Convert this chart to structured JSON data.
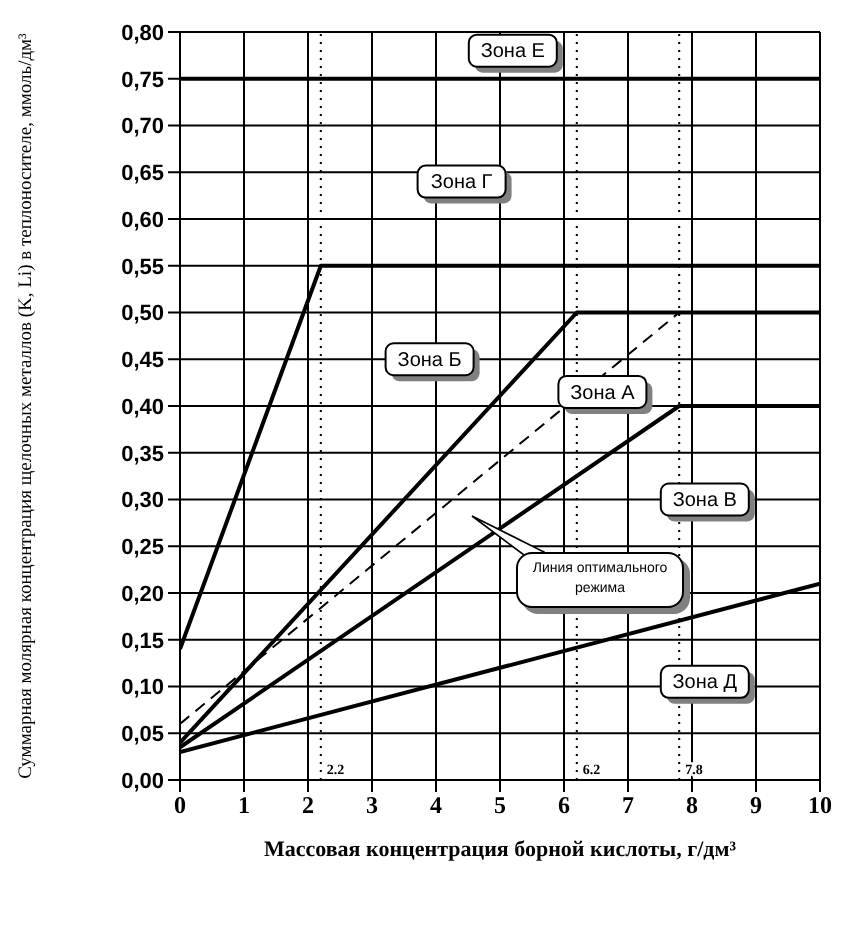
{
  "chart_data": {
    "type": "line",
    "xlabel": "Массовая концентрация борной кислоты, г/дм³",
    "ylabel": "Суммарная молярная концентрация щелочных металлов (K, Li) в теплоносителе, ммоль/дм³",
    "xlim": [
      0,
      10
    ],
    "xticks": [
      0,
      1,
      2,
      3,
      4,
      5,
      6,
      7,
      8,
      9,
      10
    ],
    "ylim": [
      0,
      0.8
    ],
    "yticks": [
      {
        "value": 0,
        "label": "0,00"
      },
      {
        "value": 0.05,
        "label": "0,05"
      },
      {
        "value": 0.1,
        "label": "0,10"
      },
      {
        "value": 0.15,
        "label": "0,15"
      },
      {
        "value": 0.2,
        "label": "0,20"
      },
      {
        "value": 0.25,
        "label": "0,25"
      },
      {
        "value": 0.3,
        "label": "0,30"
      },
      {
        "value": 0.35,
        "label": "0,35"
      },
      {
        "value": 0.4,
        "label": "0,40"
      },
      {
        "value": 0.45,
        "label": "0,45"
      },
      {
        "value": 0.5,
        "label": "0,50"
      },
      {
        "value": 0.55,
        "label": "0,55"
      },
      {
        "value": 0.6,
        "label": "0,60"
      },
      {
        "value": 0.65,
        "label": "0,65"
      },
      {
        "value": 0.7,
        "label": "0,70"
      },
      {
        "value": 0.75,
        "label": "0,75"
      },
      {
        "value": 0.8,
        "label": "0,80"
      }
    ],
    "grid": true,
    "marker": "none",
    "series": [
      {
        "color": "#000000",
        "x": [
          0,
          2.2,
          10
        ],
        "values": [
          0.14,
          0.55,
          0.55
        ]
      },
      {
        "color": "#000000",
        "x": [
          0,
          6.2,
          10
        ],
        "values": [
          0.04,
          0.5,
          0.5
        ]
      },
      {
        "color": "#000000",
        "x": [
          0,
          7.8,
          10
        ],
        "values": [
          0.06,
          0.5,
          0.5
        ],
        "line_style": "dashed"
      },
      {
        "color": "#000000",
        "x": [
          0,
          7.8,
          10
        ],
        "values": [
          0.035,
          0.4,
          0.4
        ]
      },
      {
        "color": "#000000",
        "x": [
          0,
          10
        ],
        "values": [
          0.03,
          0.21
        ]
      }
    ],
    "ref_lines": [
      {
        "axis": "y",
        "value": 0.75,
        "color": "#000000"
      },
      {
        "axis": "x",
        "value": 2.2,
        "label": "2.2",
        "line_style": "dotted",
        "color": "#000000"
      },
      {
        "axis": "x",
        "value": 6.2,
        "label": "6.2",
        "line_style": "dotted",
        "color": "#000000"
      },
      {
        "axis": "x",
        "value": 7.8,
        "label": "7.8",
        "line_style": "dotted",
        "color": "#000000"
      }
    ],
    "annotations": [
      {
        "text": "Зона Е",
        "x": 5.2,
        "y": 0.78
      },
      {
        "text": "Зона Г",
        "x": 4.4,
        "y": 0.64
      },
      {
        "text": "Зона Б",
        "x": 3.9,
        "y": 0.45
      },
      {
        "text": "Зона А",
        "x": 6.6,
        "y": 0.415
      },
      {
        "text": "Зона В",
        "x": 8.2,
        "y": 0.3
      },
      {
        "text": "Зона Д",
        "x": 8.2,
        "y": 0.105
      },
      "Линия оптимального режима"
    ]
  }
}
